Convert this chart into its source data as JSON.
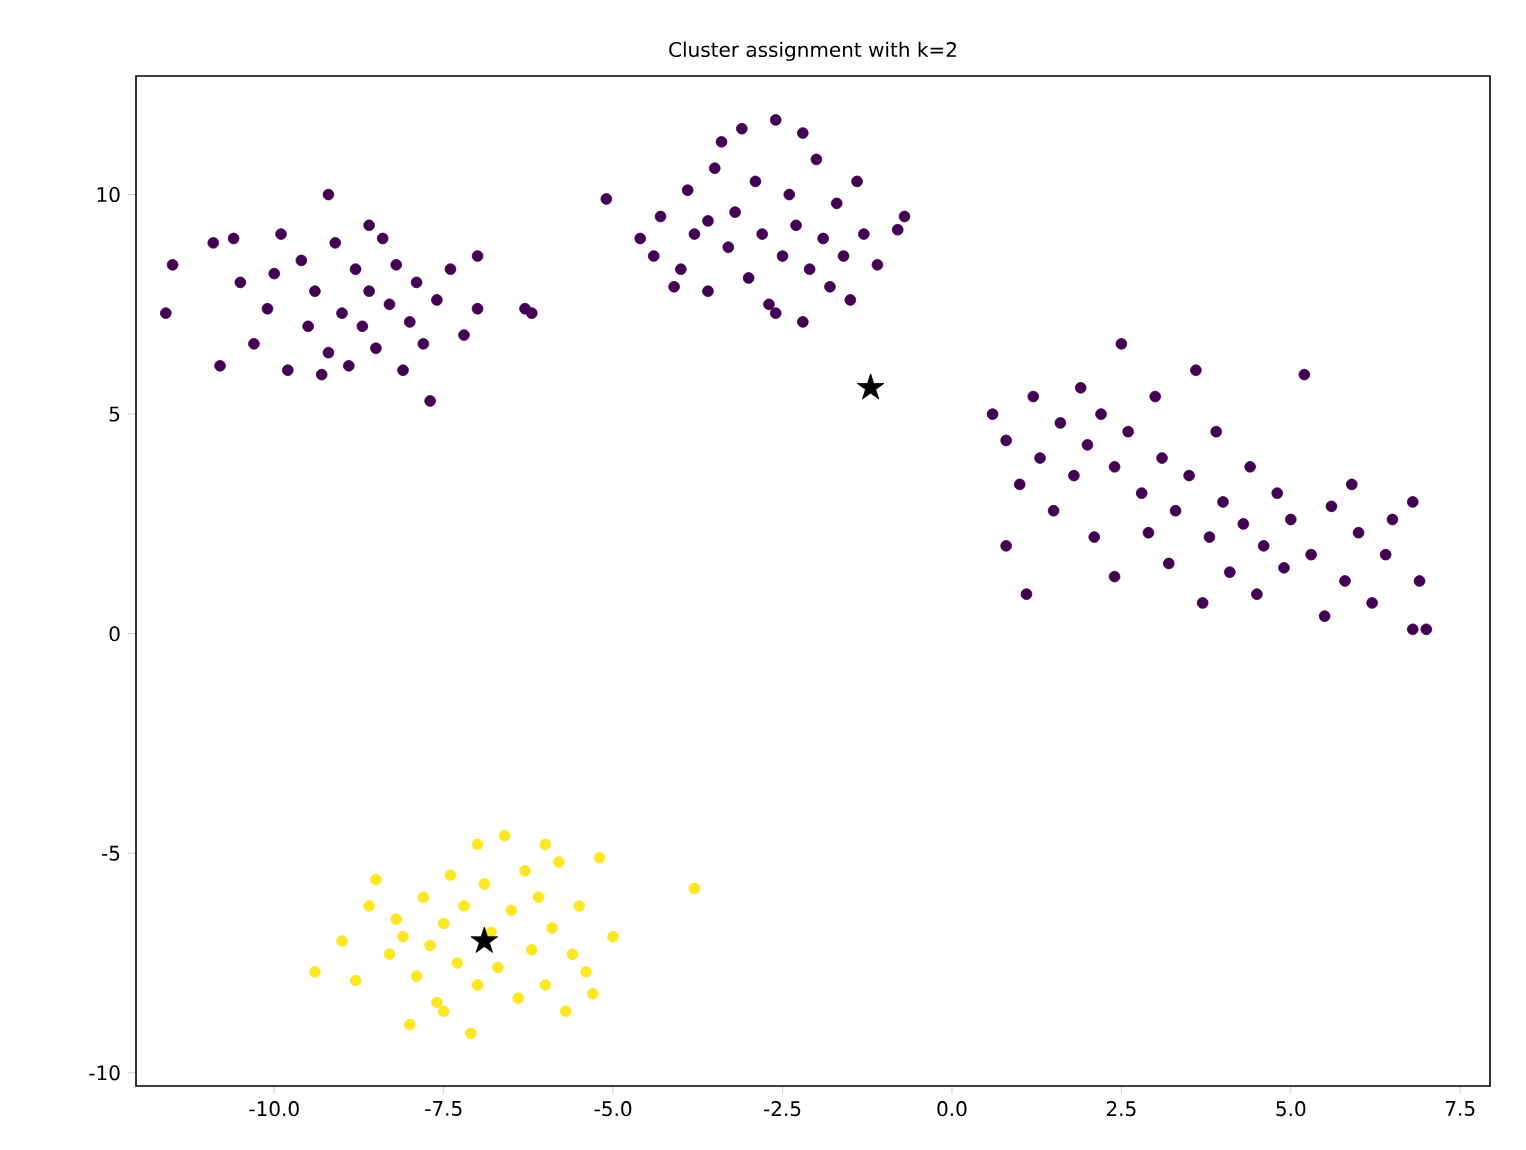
{
  "chart_data": {
    "type": "scatter",
    "title": "Cluster assignment with k=2",
    "marker": "circle",
    "grid": false,
    "xlim": [
      -12.04,
      7.94
    ],
    "ylim": [
      -10.3,
      12.7
    ],
    "xticks": [
      {
        "value": -10,
        "label": "-10.0"
      },
      {
        "value": -7.5,
        "label": "-7.5"
      },
      {
        "value": -5,
        "label": "-5.0"
      },
      {
        "value": -2.5,
        "label": "-2.5"
      },
      {
        "value": 0,
        "label": "0.0"
      },
      {
        "value": 2.5,
        "label": "2.5"
      },
      {
        "value": 5,
        "label": "5.0"
      },
      {
        "value": 7.5,
        "label": "7.5"
      }
    ],
    "yticks": [
      -10,
      -5,
      0,
      5,
      10
    ],
    "series": [
      {
        "color": "#440154",
        "x": [
          -11.5,
          -11.6,
          -10.8,
          -10.9,
          -10.5,
          -10.3,
          -10.1,
          -9.9,
          -9.8,
          -9.6,
          -9.5,
          -9.4,
          -9.2,
          -9.2,
          -9.1,
          -9.0,
          -8.9,
          -8.8,
          -8.7,
          -8.6,
          -8.5,
          -8.4,
          -8.3,
          -8.2,
          -8.1,
          -8.0,
          -7.9,
          -7.8,
          -7.7,
          -7.6,
          -7.4,
          -7.2,
          -7.0,
          -7.0,
          -6.3,
          -6.2,
          -10.6,
          -9.3,
          -8.6,
          -10.0,
          -5.1,
          -4.6,
          -4.4,
          -4.3,
          -4.0,
          -3.9,
          -3.8,
          -3.6,
          -3.5,
          -3.4,
          -3.3,
          -3.2,
          -3.0,
          -2.9,
          -2.8,
          -2.7,
          -2.6,
          -2.5,
          -2.4,
          -2.3,
          -2.2,
          -2.1,
          -2.0,
          -1.9,
          -1.8,
          -1.7,
          -1.6,
          -1.5,
          -1.4,
          -1.3,
          -1.1,
          -0.8,
          -0.7,
          -3.1,
          -4.1,
          -2.2,
          -3.6,
          -2.6,
          0.6,
          0.8,
          0.8,
          1.0,
          1.1,
          1.2,
          1.3,
          1.5,
          1.6,
          1.8,
          1.9,
          2.0,
          2.1,
          2.2,
          2.4,
          2.4,
          2.5,
          2.6,
          2.8,
          2.9,
          3.0,
          3.1,
          3.2,
          3.3,
          3.5,
          3.6,
          3.7,
          3.8,
          3.9,
          4.0,
          4.1,
          4.3,
          4.4,
          4.5,
          4.6,
          4.8,
          4.9,
          5.0,
          5.2,
          5.3,
          5.5,
          5.6,
          5.8,
          6.0,
          6.2,
          6.4,
          6.8,
          6.8,
          6.9,
          7.0,
          6.5,
          5.9
        ],
        "values": [
          8.4,
          7.3,
          6.1,
          8.9,
          8.0,
          6.6,
          7.4,
          9.1,
          6.0,
          8.5,
          7.0,
          7.8,
          10.0,
          6.4,
          8.9,
          7.3,
          6.1,
          8.3,
          7.0,
          7.8,
          6.5,
          9.0,
          7.5,
          8.4,
          6.0,
          7.1,
          8.0,
          6.6,
          5.3,
          7.6,
          8.3,
          6.8,
          8.6,
          7.4,
          7.4,
          7.3,
          9.0,
          5.9,
          9.3,
          8.2,
          9.9,
          9.0,
          8.6,
          9.5,
          8.3,
          10.1,
          9.1,
          7.8,
          10.6,
          11.2,
          8.8,
          9.6,
          8.1,
          10.3,
          9.1,
          7.5,
          11.7,
          8.6,
          10.0,
          9.3,
          7.1,
          8.3,
          10.8,
          9.0,
          7.9,
          9.8,
          8.6,
          7.6,
          10.3,
          9.1,
          8.4,
          9.2,
          9.5,
          11.5,
          7.9,
          11.4,
          9.4,
          7.3,
          5.0,
          4.4,
          2.0,
          3.4,
          0.9,
          5.4,
          4.0,
          2.8,
          4.8,
          3.6,
          5.6,
          4.3,
          2.2,
          5.0,
          1.3,
          3.8,
          6.6,
          4.6,
          3.2,
          2.3,
          5.4,
          4.0,
          1.6,
          2.8,
          3.6,
          6.0,
          0.7,
          2.2,
          4.6,
          3.0,
          1.4,
          2.5,
          3.8,
          0.9,
          2.0,
          3.2,
          1.5,
          2.6,
          5.9,
          1.8,
          0.4,
          2.9,
          1.2,
          2.3,
          0.7,
          1.8,
          3.0,
          0.1,
          1.2,
          0.1,
          2.6,
          3.4
        ]
      },
      {
        "color": "#fde725",
        "x": [
          -9.4,
          -9.0,
          -8.8,
          -8.6,
          -8.5,
          -8.3,
          -8.2,
          -8.0,
          -7.9,
          -7.8,
          -7.7,
          -7.6,
          -7.5,
          -7.4,
          -7.3,
          -7.2,
          -7.1,
          -7.0,
          -6.9,
          -6.8,
          -6.7,
          -6.6,
          -6.5,
          -6.4,
          -6.3,
          -6.2,
          -6.1,
          -6.0,
          -5.9,
          -5.8,
          -5.7,
          -5.6,
          -5.5,
          -5.4,
          -5.2,
          -5.3,
          -5.0,
          -3.8,
          -7.0,
          -8.1,
          -6.0,
          -7.5
        ],
        "values": [
          -7.7,
          -7.0,
          -7.9,
          -6.2,
          -5.6,
          -7.3,
          -6.5,
          -8.9,
          -7.8,
          -6.0,
          -7.1,
          -8.4,
          -6.6,
          -5.5,
          -7.5,
          -6.2,
          -9.1,
          -8.0,
          -5.7,
          -6.8,
          -7.6,
          -4.6,
          -6.3,
          -8.3,
          -5.4,
          -7.2,
          -6.0,
          -8.0,
          -6.7,
          -5.2,
          -8.6,
          -7.3,
          -6.2,
          -7.7,
          -5.1,
          -8.2,
          -6.9,
          -5.8,
          -4.8,
          -6.9,
          -4.8,
          -8.6
        ]
      },
      {
        "color": "#000000",
        "marker": "star",
        "x": [
          -1.2,
          -6.9
        ],
        "values": [
          5.6,
          -7.0
        ]
      }
    ]
  }
}
